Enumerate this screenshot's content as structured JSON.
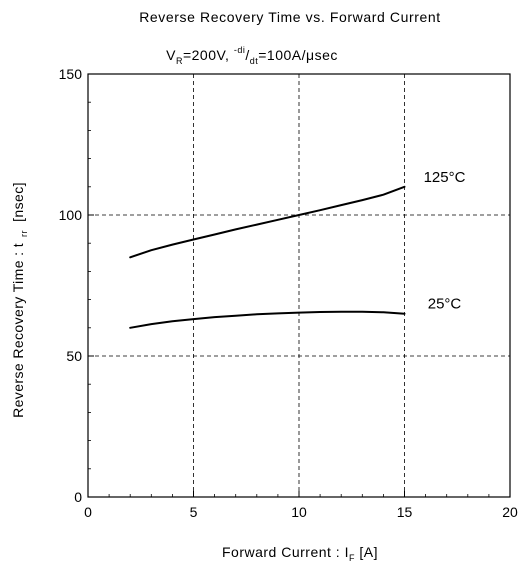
{
  "chart_data": {
    "type": "line",
    "title": "Reverse Recovery Time vs. Forward Current",
    "subtitle": {
      "vr_main": "V",
      "vr_sub": "R",
      "vr_val": "=200V, ",
      "di_sup": "-di",
      "slash": "/",
      "dt_sub": "dt",
      "rate": "=100A/μsec"
    },
    "xlabel": {
      "main": "Forward Current  :  I",
      "sub": "F",
      "unit": "  [A]"
    },
    "ylabel": {
      "main": "Reverse Recovery Time : t",
      "sub": "rr",
      "unit": "  [nsec]"
    },
    "xlim": [
      0,
      20
    ],
    "ylim": [
      0,
      150
    ],
    "xticks": [
      "0",
      "5",
      "10",
      "15",
      "20"
    ],
    "yticks": [
      "0",
      "50",
      "100",
      "150"
    ],
    "grid": true,
    "series": [
      {
        "name": "125°C",
        "x": [
          2,
          3,
          4,
          5,
          6,
          7,
          8,
          9,
          10,
          11,
          12,
          13,
          14,
          15
        ],
        "values": [
          85,
          87.5,
          89.5,
          91.3,
          93.1,
          94.9,
          96.6,
          98.3,
          100,
          101.7,
          103.5,
          105.3,
          107.2,
          110
        ]
      },
      {
        "name": "25°C",
        "x": [
          2,
          3,
          4,
          5,
          6,
          7,
          8,
          9,
          10,
          11,
          12,
          13,
          14,
          15
        ],
        "values": [
          60,
          61.3,
          62.3,
          63.1,
          63.8,
          64.3,
          64.8,
          65.1,
          65.4,
          65.6,
          65.7,
          65.7,
          65.5,
          65
        ]
      }
    ]
  }
}
